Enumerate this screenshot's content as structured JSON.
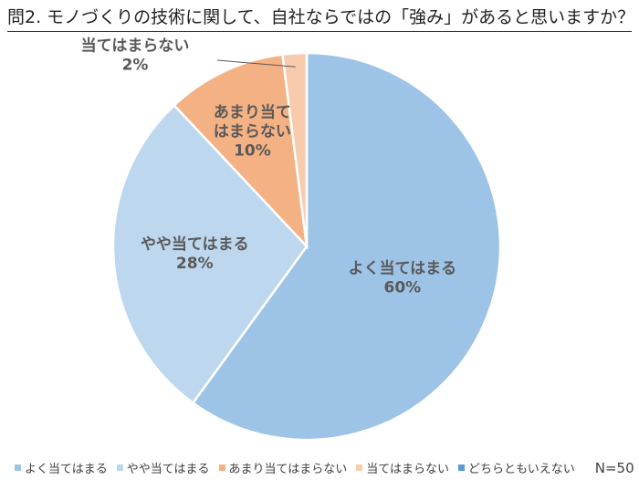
{
  "title": "問2. モノづくりの技術に関して、自社ならではの「強み」があると思いますか？",
  "chart_data": {
    "type": "pie",
    "categories": [
      "よく当てはまる",
      "やや当てはまる",
      "あまり当てはまらない",
      "当てはまらない",
      "どちらともいえない"
    ],
    "values": [
      60,
      28,
      10,
      2,
      0
    ],
    "value_labels": [
      "60%",
      "28%",
      "10%",
      "2%",
      ""
    ],
    "colors": [
      "#9DC3E6",
      "#BDD7EE",
      "#F4B183",
      "#F8CBAD",
      "#5B9BD5"
    ],
    "legend_position": "bottom",
    "annotation": "N=50"
  }
}
